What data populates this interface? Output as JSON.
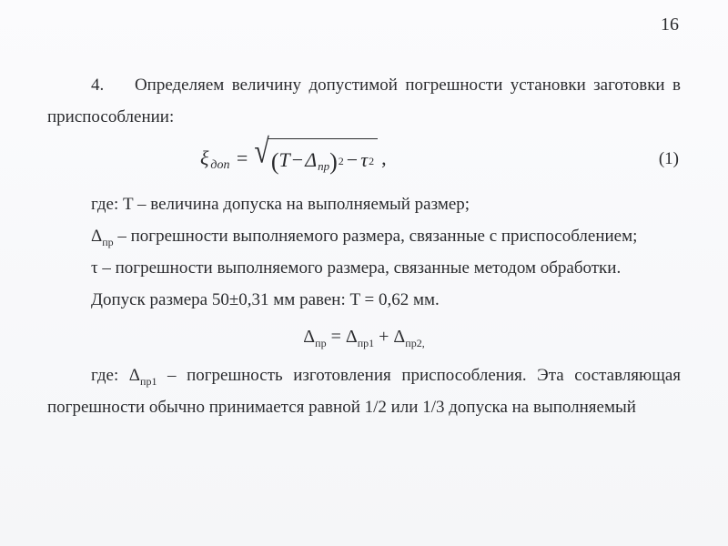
{
  "page_number": "16",
  "intro": {
    "num": "4.",
    "text_rest": "Определяем величину допустимой погрешности установки заготовки в приспособлении:"
  },
  "eq1": {
    "lhs_symbol": "ξ",
    "lhs_sub": "доп",
    "eq": "=",
    "rad_T": "T",
    "rad_minus1": "−",
    "rad_Delta": "Δ",
    "rad_Delta_sub": "пр",
    "rad_minus2": "−",
    "rad_tau": "τ",
    "trailing_comma": ",",
    "label": "(1)"
  },
  "defs": {
    "d1": "где: T – величина допуска на выполняемый размер;",
    "d2_a": "Δ",
    "d2_sub": "пр",
    "d2_b": " – погрешности выполняемого размера, связанные с приспособлением;",
    "d3": "τ – погрешности выполняемого размера, связанные методом обработки.",
    "d4": "Допуск размера 50±0,31 мм равен: T = 0,62 мм."
  },
  "eq2": {
    "D": "Δ",
    "s_pr": "пр",
    "eq": " = ",
    "s_pr1": "пр1",
    "plus": " + ",
    "s_pr2": "пр2,"
  },
  "defs2": {
    "p_a": "где: Δ",
    "p_sub": "пр1",
    "p_b": " – погрешность изготовления приспособления. Эта составляющая погрешности обычно принимается равной 1/2 или 1/3 допуска на выполняемый"
  }
}
